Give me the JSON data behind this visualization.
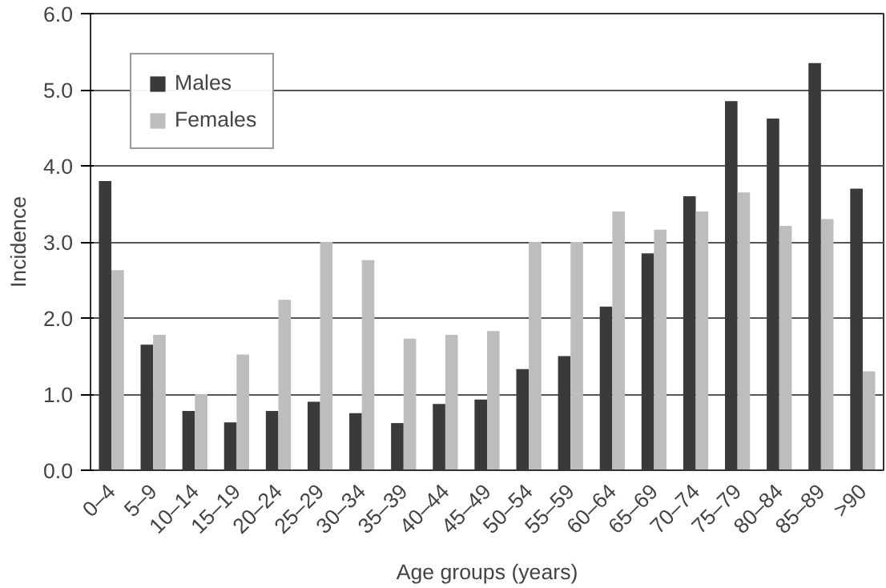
{
  "chart_data": {
    "type": "bar",
    "xlabel": "Age groups (years)",
    "ylabel": "Incidence",
    "categories": [
      "0–4",
      "5–9",
      "10–14",
      "15–19",
      "20–24",
      "25–29",
      "30–34",
      "35–39",
      "40–44",
      "45–49",
      "50–54",
      "55–59",
      "60–64",
      "65–69",
      "70–74",
      "75–79",
      "80–84",
      "85–89",
      ">90"
    ],
    "series": [
      {
        "name": "Males",
        "color": "#3a3a3a",
        "values": [
          3.8,
          1.65,
          0.78,
          0.63,
          0.78,
          0.9,
          0.75,
          0.62,
          0.87,
          0.93,
          1.33,
          1.5,
          2.15,
          2.85,
          3.6,
          4.85,
          4.62,
          5.35,
          3.7
        ]
      },
      {
        "name": "Females",
        "color": "#bdbdbd",
        "values": [
          2.63,
          1.78,
          1.0,
          1.52,
          2.24,
          3.0,
          2.76,
          1.73,
          1.78,
          1.83,
          3.0,
          3.0,
          3.4,
          3.16,
          3.4,
          3.65,
          3.21,
          3.3,
          1.3
        ]
      }
    ],
    "ylim": [
      0,
      6
    ],
    "yticks": [
      {
        "value": 0,
        "label": "0.0"
      },
      {
        "value": 1,
        "label": "1.0"
      },
      {
        "value": 2,
        "label": "2.0"
      },
      {
        "value": 3,
        "label": "3.0"
      },
      {
        "value": 4,
        "label": "4.0"
      },
      {
        "value": 5,
        "label": "5.0"
      },
      {
        "value": 6,
        "label": "6.0"
      }
    ],
    "grid": "y",
    "legend": "top left"
  }
}
